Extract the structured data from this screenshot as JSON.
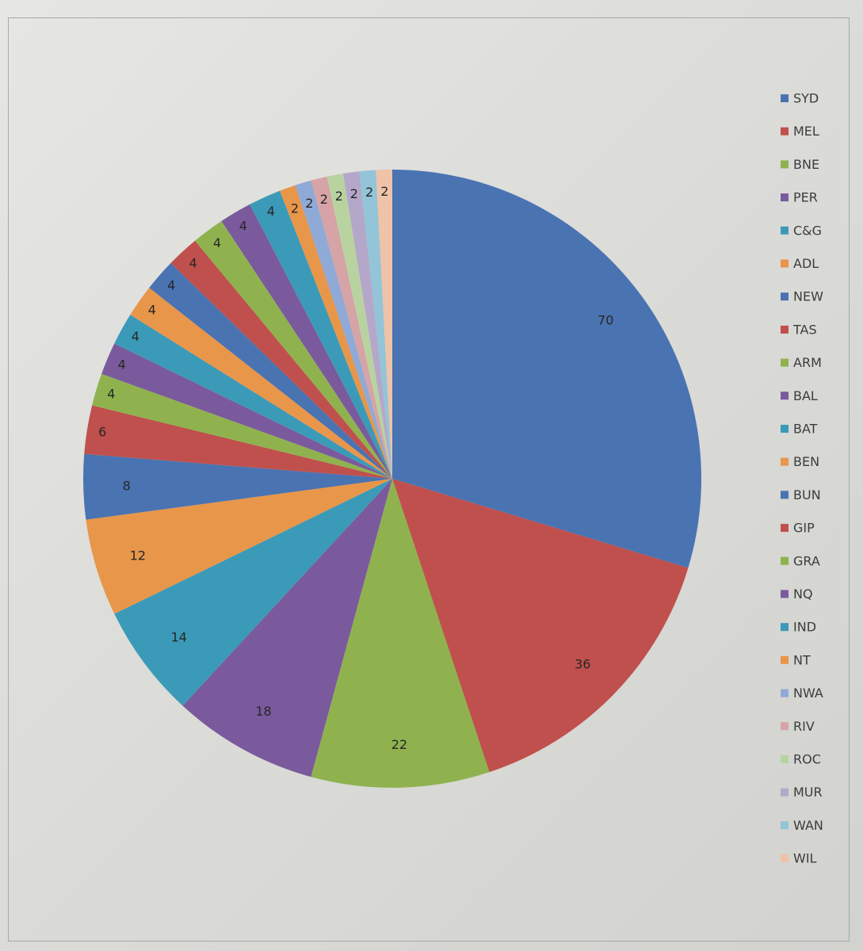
{
  "chart_data": {
    "type": "pie",
    "title": "",
    "categories": [
      "SYD",
      "MEL",
      "BNE",
      "PER",
      "C&G",
      "ADL",
      "NEW",
      "TAS",
      "ARM",
      "BAL",
      "BAT",
      "BEN",
      "BUN",
      "GIP",
      "GRA",
      "NQ",
      "IND",
      "NT",
      "NWA",
      "RIV",
      "ROC",
      "MUR",
      "WAN",
      "WIL"
    ],
    "values": [
      70,
      36,
      22,
      18,
      14,
      12,
      8,
      6,
      4,
      4,
      4,
      4,
      4,
      4,
      4,
      4,
      4,
      2,
      2,
      2,
      2,
      2,
      2,
      2
    ],
    "colors": [
      "#4a73b2",
      "#c0504d",
      "#8fb24f",
      "#7a5a9c",
      "#3b9ab8",
      "#e8964a",
      "#4a73b2",
      "#c0504d",
      "#8fb24f",
      "#7a5a9c",
      "#3b9ab8",
      "#e8964a",
      "#4a73b2",
      "#c0504d",
      "#8fb24f",
      "#7a5a9c",
      "#3b9ab8",
      "#e8964a",
      "#8faad6",
      "#d6a3a6",
      "#b9d3a0",
      "#b5a7c9",
      "#93c4d8",
      "#eec3a8"
    ],
    "legend_position": "right",
    "data_labels": true,
    "start_angle": "12 o'clock",
    "direction": "clockwise"
  }
}
